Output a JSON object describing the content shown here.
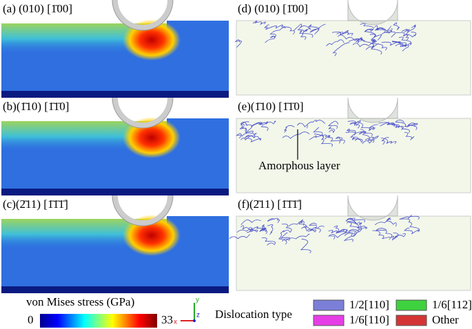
{
  "panels": [
    {
      "label": "(a) (010) [1̄00]"
    },
    {
      "label": "(b)(1̄10) [1̄1̄0]"
    },
    {
      "label": "(c)(2̄11) [1̄1̄1̄]"
    },
    {
      "label": "(d) (010) [1̄00]"
    },
    {
      "label": "(e)(1̄10) [1̄1̄0]"
    },
    {
      "label": "(f)(2̄11) [1̄1̄1̄]"
    }
  ],
  "annotation": "Amorphous layer",
  "colorbar": {
    "title": "von Mises stress (GPa)",
    "min": "0",
    "max": "33"
  },
  "axes": {
    "x": "x",
    "y": "y",
    "z": "z"
  },
  "legend": {
    "title": "Dislocation type",
    "items": [
      {
        "label": "1/2[110]",
        "color": "#7b7fd8"
      },
      {
        "label": "1/6[112]",
        "color": "#3ed23e"
      },
      {
        "label": "1/6[110]",
        "color": "#e63ee6"
      },
      {
        "label": "Other",
        "color": "#d43434"
      }
    ]
  }
}
